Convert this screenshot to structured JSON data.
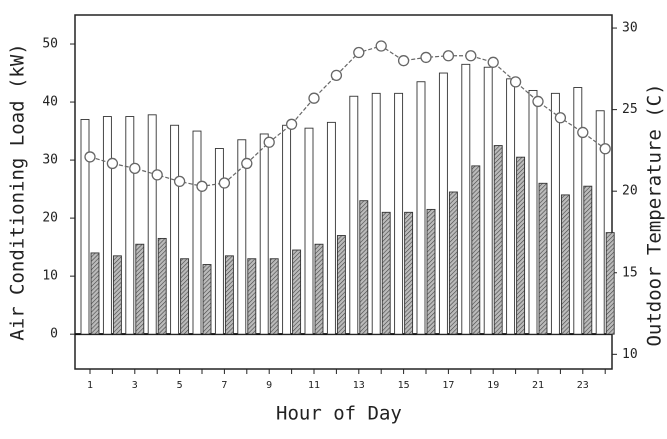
{
  "chart_data": {
    "type": "bar",
    "x_label": "Hour of Day",
    "y_label": "Air Conditioning Load (kW)",
    "y2_label": "Outdoor Temperature (C)",
    "categories": [
      1,
      null,
      3,
      null,
      5,
      null,
      7,
      null,
      9,
      null,
      11,
      null,
      13,
      null,
      15,
      null,
      17,
      null,
      19,
      null,
      21,
      null,
      23,
      null
    ],
    "series": [
      {
        "color": "#ffffff",
        "values": [
          37,
          37.5,
          37.5,
          37.8,
          36,
          35,
          32,
          33.5,
          34.5,
          36,
          35.5,
          36.5,
          41,
          41.5,
          41.5,
          43.5,
          45,
          46.5,
          46,
          44,
          42,
          41.5,
          42.5,
          38.5
        ]
      },
      {
        "color": "#888888",
        "values": [
          14,
          13.5,
          15.5,
          16.5,
          13,
          12,
          13.5,
          13,
          13,
          14.5,
          15.5,
          17,
          23,
          21,
          21,
          21.5,
          24.5,
          29,
          32.5,
          30.5,
          26,
          24,
          25.5,
          17.5
        ]
      },
      {
        "type": "line",
        "axis": "y2",
        "color": "#666666",
        "values": [
          22.1,
          21.7,
          21.4,
          21.0,
          20.6,
          20.3,
          20.5,
          21.7,
          23.0,
          24.1,
          25.7,
          27.1,
          28.5,
          28.9,
          28.0,
          28.2,
          28.3,
          28.3,
          27.9,
          26.7,
          25.5,
          24.5,
          23.6,
          22.6
        ]
      }
    ],
    "ylim": [
      -6,
      55
    ],
    "yticks": [
      0,
      10,
      20,
      30,
      40,
      50
    ],
    "y2lim": [
      9.1,
      30.8
    ],
    "y2ticks": [
      10,
      15,
      20,
      25,
      30
    ]
  }
}
